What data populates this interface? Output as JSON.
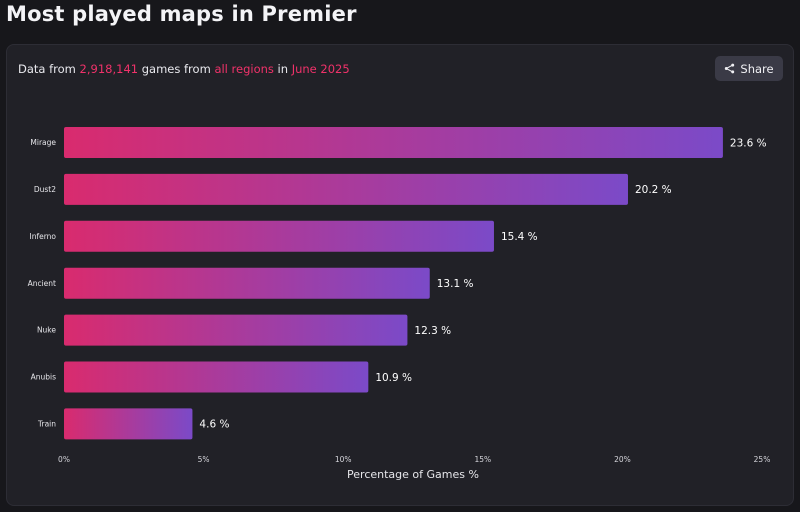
{
  "page": {
    "title": "Most played maps in Premier"
  },
  "summary": {
    "prefix": "Data from ",
    "games_count": "2,918,141",
    "middle1": " games from ",
    "regions": "all regions",
    "middle2": " in ",
    "period": "June 2025"
  },
  "share": {
    "label": "Share",
    "icon": "share-icon"
  },
  "colors": {
    "bar_start": "#d92b6e",
    "bar_end": "#7b4ac8",
    "highlight": "#f0326a"
  },
  "chart_data": {
    "type": "bar",
    "orientation": "horizontal",
    "categories": [
      "Mirage",
      "Dust2",
      "Inferno",
      "Ancient",
      "Nuke",
      "Anubis",
      "Train"
    ],
    "values": [
      23.6,
      20.2,
      15.4,
      13.1,
      12.3,
      10.9,
      4.6
    ],
    "value_labels": [
      "23.6 %",
      "20.2 %",
      "15.4 %",
      "13.1 %",
      "12.3 %",
      "10.9 %",
      "4.6 %"
    ],
    "xlabel": "Percentage of Games %",
    "ylabel": "",
    "xlim": [
      0,
      25
    ],
    "xticks": [
      0,
      5,
      10,
      15,
      20,
      25
    ],
    "xtick_labels": [
      "0%",
      "5%",
      "10%",
      "15%",
      "20%",
      "25%"
    ],
    "grid": false,
    "legend": "none"
  }
}
